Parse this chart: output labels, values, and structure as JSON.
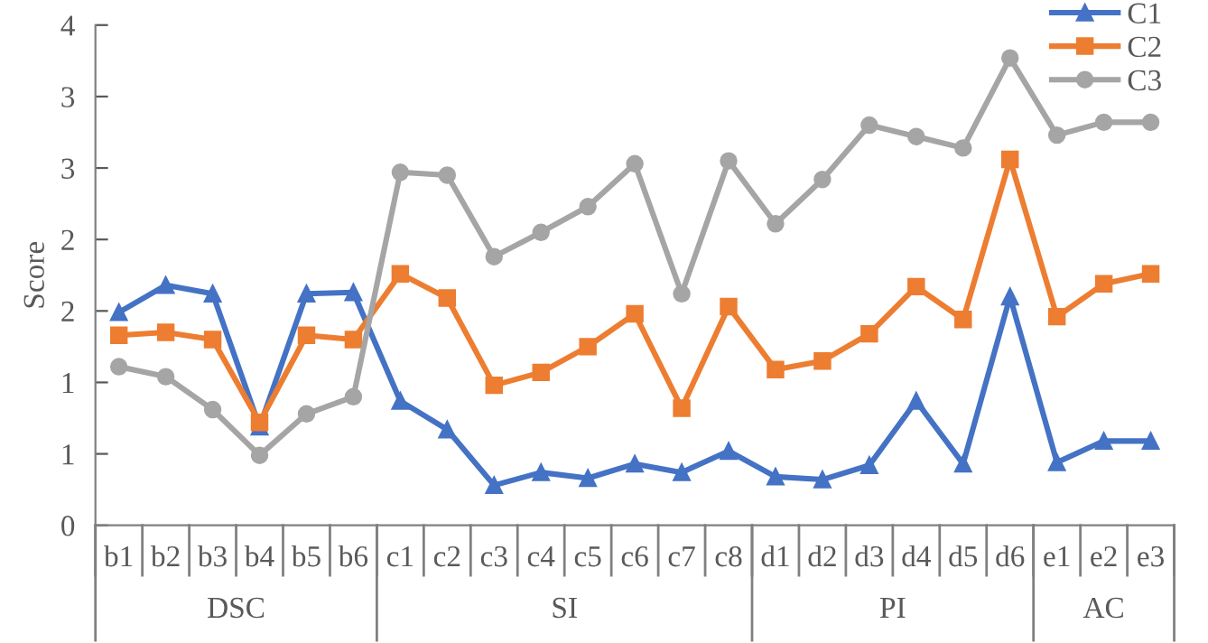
{
  "chart_data": {
    "type": "line",
    "ylabel": "Score",
    "categories": [
      "b1",
      "b2",
      "b3",
      "b4",
      "b5",
      "b6",
      "c1",
      "c2",
      "c3",
      "c4",
      "c5",
      "c6",
      "c7",
      "c8",
      "d1",
      "d2",
      "d3",
      "d4",
      "d5",
      "d6",
      "e1",
      "e2",
      "e3"
    ],
    "series": [
      {
        "name": "C1",
        "color": "#4472c4",
        "marker": "triangle",
        "values": [
          1.49,
          1.68,
          1.62,
          0.69,
          1.62,
          1.63,
          0.87,
          0.67,
          0.28,
          0.37,
          0.33,
          0.43,
          0.37,
          0.52,
          0.34,
          0.32,
          0.42,
          0.87,
          0.43,
          1.6,
          0.44,
          0.59,
          0.59
        ]
      },
      {
        "name": "C2",
        "color": "#ed7d31",
        "marker": "square",
        "values": [
          1.33,
          1.35,
          1.3,
          0.72,
          1.33,
          1.3,
          1.76,
          1.59,
          0.98,
          1.07,
          1.25,
          1.48,
          0.82,
          1.53,
          1.09,
          1.15,
          1.34,
          1.67,
          1.44,
          2.56,
          1.46,
          1.69,
          1.76
        ]
      },
      {
        "name": "C3",
        "color": "#a5a5a5",
        "marker": "circle",
        "values": [
          1.11,
          1.04,
          0.81,
          0.49,
          0.78,
          0.9,
          2.47,
          2.45,
          1.88,
          2.05,
          2.23,
          2.53,
          1.62,
          2.55,
          2.11,
          2.42,
          2.8,
          2.72,
          2.64,
          3.27,
          2.73,
          2.82,
          2.82
        ]
      }
    ],
    "ylim": [
      0,
      3.5
    ],
    "yticks": [
      0,
      {
        "value": 0.5,
        "label": "1"
      },
      1,
      {
        "value": 1.5,
        "label": "2"
      },
      2,
      {
        "value": 2.5,
        "label": "3"
      },
      3,
      {
        "value": 3.5,
        "label": "4"
      }
    ],
    "annotations": [
      "DSC",
      "SI",
      "PI",
      "AC"
    ],
    "grid": false,
    "legend": "top right",
    "line_style": "solid"
  }
}
